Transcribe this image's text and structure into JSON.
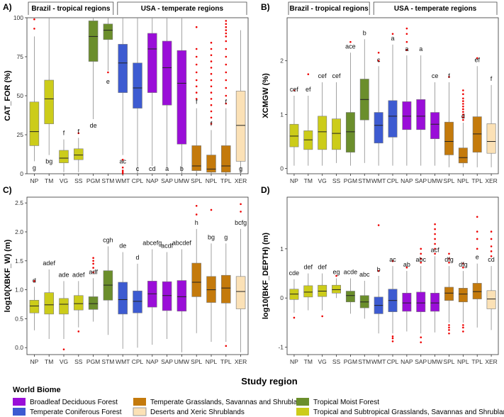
{
  "figure": {
    "xlabel": "Study region",
    "legend_title": "World Biome",
    "legend": [
      {
        "key": "BDF",
        "label": "Broadleaf Deciduous Forest"
      },
      {
        "key": "TCF",
        "label": "Temperate Coniferous Forest"
      },
      {
        "key": "TGS",
        "label": "Temperate Grasslands, Savannas and Shrublands"
      },
      {
        "key": "DXS",
        "label": "Deserts and Xeric Shrublands"
      },
      {
        "key": "TMF",
        "label": "Tropical Moist Forest"
      },
      {
        "key": "TSG",
        "label": "Tropical and Subtropical Grasslands, Savannas and Shrublands"
      }
    ],
    "colors": {
      "TSG": "#cccc1a",
      "TMF": "#6b8e2c",
      "TCF": "#3d5bd1",
      "BDF": "#9a0ed8",
      "TGS": "#c47a0c",
      "DXS": "#fbe1b6",
      "outlier": "#ee0000"
    }
  },
  "chart_data": [
    {
      "panel": "A)",
      "type": "boxplot",
      "ylabel": "CAT_FOR (%)",
      "ylim": [
        0,
        100
      ],
      "yticks": [
        "0",
        "25",
        "50",
        "75",
        "100"
      ],
      "yticks_values": [
        0,
        25,
        50,
        75,
        100
      ],
      "group_labels": [
        "Brazil - tropical regions",
        "USA - temperate regions"
      ],
      "categories": [
        "NP",
        "TM",
        "VG",
        "SS",
        "PGM",
        "STM",
        "WMT",
        "CPL",
        "NAP",
        "SAP",
        "UMW",
        "SPL",
        "NPL",
        "TPL",
        "XER"
      ],
      "biomes": [
        "TSG",
        "TSG",
        "TSG",
        "TSG",
        "TMF",
        "TMF",
        "TCF",
        "TCF",
        "BDF",
        "BDF",
        "BDF",
        "TGS",
        "TGS",
        "TGS",
        "DXS"
      ],
      "letters": [
        "g",
        "bg",
        "f",
        "f",
        "de",
        "e",
        "ac",
        "c",
        "cd",
        "a",
        "b",
        "f",
        "f",
        "f",
        "g"
      ],
      "boxes": [
        {
          "min": 8,
          "q1": 18,
          "median": 27,
          "q3": 46,
          "max": 88,
          "outliers": [
            93,
            99
          ]
        },
        {
          "min": 12,
          "q1": 32,
          "median": 48,
          "q3": 60,
          "max": 100,
          "outliers": []
        },
        {
          "min": 1,
          "q1": 7,
          "median": 10,
          "q3": 15,
          "max": 22,
          "outliers": []
        },
        {
          "min": 1,
          "q1": 9,
          "median": 12,
          "q3": 16,
          "max": 23,
          "outliers": [
            26
          ]
        },
        {
          "min": 35,
          "q1": 72,
          "median": 88,
          "q3": 98,
          "max": 100,
          "outliers": []
        },
        {
          "min": 66,
          "q1": 86,
          "median": 92,
          "q3": 96,
          "max": 100,
          "outliers": [
            65
          ]
        },
        {
          "min": 12,
          "q1": 52,
          "median": 71,
          "q3": 83,
          "max": 100,
          "outliers": [
            9,
            4,
            2,
            1,
            0
          ]
        },
        {
          "min": 0,
          "q1": 42,
          "median": 55,
          "q3": 71,
          "max": 100,
          "outliers": []
        },
        {
          "min": 5,
          "q1": 52,
          "median": 80,
          "q3": 90,
          "max": 100,
          "outliers": []
        },
        {
          "min": 4,
          "q1": 44,
          "median": 68,
          "q3": 85,
          "max": 100,
          "outliers": []
        },
        {
          "min": 0,
          "q1": 19,
          "median": 58,
          "q3": 79,
          "max": 100,
          "outliers": []
        },
        {
          "min": 0,
          "q1": 2,
          "median": 5,
          "q3": 18,
          "max": 42,
          "outliers": [
            48,
            52,
            56,
            60,
            65,
            70,
            75,
            80,
            94
          ]
        },
        {
          "min": 0,
          "q1": 1,
          "median": 3,
          "q3": 12,
          "max": 28,
          "outliers": [
            32,
            36,
            40,
            44,
            48,
            52,
            56,
            60,
            64,
            68,
            72,
            76,
            80,
            84
          ]
        },
        {
          "min": 0,
          "q1": 1,
          "median": 5,
          "q3": 18,
          "max": 42,
          "outliers": [
            45,
            50,
            55,
            60,
            65,
            70,
            75,
            80,
            85,
            88,
            90,
            92,
            94,
            96,
            98
          ]
        },
        {
          "min": 0,
          "q1": 8,
          "median": 31,
          "q3": 53,
          "max": 92,
          "outliers": []
        }
      ]
    },
    {
      "panel": "B)",
      "type": "boxplot",
      "ylabel": "XCMGW (%)",
      "ylim": [
        -0.1,
        2.8
      ],
      "yticks": [
        "0",
        "1",
        "2"
      ],
      "yticks_values": [
        0,
        1,
        2
      ],
      "group_labels": [
        "Brazil - tropical regions",
        "USA - temperate regions"
      ],
      "categories": [
        "NP",
        "TM",
        "VG",
        "SS",
        "PGM",
        "STM",
        "WMT",
        "CPL",
        "NAP",
        "SAP",
        "UMW",
        "SPL",
        "NPL",
        "TPL",
        "XER"
      ],
      "biomes": [
        "TSG",
        "TSG",
        "TSG",
        "TSG",
        "TMF",
        "TMF",
        "TCF",
        "TCF",
        "BDF",
        "BDF",
        "BDF",
        "TGS",
        "TGS",
        "TGS",
        "DXS"
      ],
      "letters": [
        "cef",
        "ef",
        "cef",
        "cef",
        "ace",
        "b",
        "c",
        "a",
        "a",
        "a",
        "ce",
        "f",
        "d",
        "ef",
        "f"
      ],
      "boxes": [
        {
          "min": 0.05,
          "q1": 0.4,
          "median": 0.6,
          "q3": 0.82,
          "max": 1.35,
          "outliers": [
            1.45
          ]
        },
        {
          "min": 0.05,
          "q1": 0.35,
          "median": 0.53,
          "q3": 0.7,
          "max": 1.35,
          "outliers": [
            1.75
          ]
        },
        {
          "min": 0.05,
          "q1": 0.35,
          "median": 0.68,
          "q3": 0.97,
          "max": 1.6,
          "outliers": []
        },
        {
          "min": 0.1,
          "q1": 0.35,
          "median": 0.65,
          "q3": 0.92,
          "max": 1.6,
          "outliers": []
        },
        {
          "min": 0.05,
          "q1": 0.3,
          "median": 0.68,
          "q3": 1.04,
          "max": 2.15,
          "outliers": [
            2.35
          ]
        },
        {
          "min": 0.1,
          "q1": 0.9,
          "median": 1.28,
          "q3": 1.66,
          "max": 2.4,
          "outliers": []
        },
        {
          "min": 0.05,
          "q1": 0.47,
          "median": 0.8,
          "q3": 1.04,
          "max": 1.9,
          "outliers": [
            2.0,
            2.15
          ]
        },
        {
          "min": 0.05,
          "q1": 0.58,
          "median": 0.97,
          "q3": 1.26,
          "max": 2.3,
          "outliers": [
            2.5
          ]
        },
        {
          "min": 0.05,
          "q1": 0.72,
          "median": 0.97,
          "q3": 1.24,
          "max": 2.1,
          "outliers": [
            2.2,
            2.35,
            2.5,
            2.6
          ]
        },
        {
          "min": 0.05,
          "q1": 0.72,
          "median": 0.97,
          "q3": 1.28,
          "max": 2.1,
          "outliers": []
        },
        {
          "min": 0.05,
          "q1": 0.55,
          "median": 0.82,
          "q3": 1.04,
          "max": 1.6,
          "outliers": []
        },
        {
          "min": 0.02,
          "q1": 0.25,
          "median": 0.5,
          "q3": 0.86,
          "max": 1.6,
          "outliers": [
            1.7
          ]
        },
        {
          "min": 0.02,
          "q1": 0.1,
          "median": 0.2,
          "q3": 0.38,
          "max": 0.85,
          "outliers": [
            0.9,
            0.95,
            1.0,
            1.05,
            1.1,
            1.15,
            1.2,
            1.25,
            1.3,
            1.38,
            1.45
          ]
        },
        {
          "min": 0.02,
          "q1": 0.3,
          "median": 0.64,
          "q3": 0.96,
          "max": 1.9,
          "outliers": [
            2.05
          ]
        },
        {
          "min": 0.02,
          "q1": 0.28,
          "median": 0.5,
          "q3": 0.83,
          "max": 1.55,
          "outliers": []
        }
      ]
    },
    {
      "panel": "C)",
      "type": "boxplot",
      "ylabel": "log10(XBKF_W) (m)",
      "ylim": [
        -0.12,
        2.6
      ],
      "yticks": [
        "0.0",
        "0.5",
        "1.0",
        "1.5",
        "2.0",
        "2.5"
      ],
      "yticks_values": [
        0,
        0.5,
        1.0,
        1.5,
        2.0,
        2.5
      ],
      "categories": [
        "NP",
        "TM",
        "VG",
        "SS",
        "PGM",
        "STM",
        "WMT",
        "CPL",
        "NAP",
        "SAP",
        "UMW",
        "SPL",
        "NPL",
        "TPL",
        "XER"
      ],
      "biomes": [
        "TSG",
        "TSG",
        "TSG",
        "TSG",
        "TMF",
        "TMF",
        "TCF",
        "TCF",
        "BDF",
        "BDF",
        "BDF",
        "TGS",
        "TGS",
        "TGS",
        "DXS"
      ],
      "letters": [
        "d",
        "adef",
        "ade",
        "adef",
        "adf",
        "cgh",
        "de",
        "d",
        "abcefg",
        "acdf",
        "abcdef",
        "h",
        "bg",
        "g",
        "bcfg"
      ],
      "boxes": [
        {
          "min": 0.3,
          "q1": 0.6,
          "median": 0.72,
          "q3": 0.82,
          "max": 1.05,
          "outliers": [
            1.15
          ]
        },
        {
          "min": 0.15,
          "q1": 0.58,
          "median": 0.74,
          "q3": 0.95,
          "max": 1.35,
          "outliers": []
        },
        {
          "min": 0.15,
          "q1": 0.58,
          "median": 0.75,
          "q3": 0.85,
          "max": 1.15,
          "outliers": [
            -0.03
          ]
        },
        {
          "min": 0.35,
          "q1": 0.65,
          "median": 0.76,
          "q3": 0.9,
          "max": 1.15,
          "outliers": [
            0.28
          ]
        },
        {
          "min": 0.45,
          "q1": 0.66,
          "median": 0.76,
          "q3": 0.88,
          "max": 1.2,
          "outliers": [
            1.3,
            1.38,
            1.45,
            1.5,
            1.55
          ]
        },
        {
          "min": 0.22,
          "q1": 0.82,
          "median": 1.08,
          "q3": 1.33,
          "max": 1.75,
          "outliers": []
        },
        {
          "min": -0.02,
          "q1": 0.58,
          "median": 0.83,
          "q3": 1.13,
          "max": 1.65,
          "outliers": []
        },
        {
          "min": 0.0,
          "q1": 0.6,
          "median": 0.8,
          "q3": 0.98,
          "max": 1.45,
          "outliers": []
        },
        {
          "min": 0.05,
          "q1": 0.7,
          "median": 0.93,
          "q3": 1.15,
          "max": 1.7,
          "outliers": []
        },
        {
          "min": 0.15,
          "q1": 0.64,
          "median": 0.9,
          "q3": 1.14,
          "max": 1.65,
          "outliers": []
        },
        {
          "min": -0.08,
          "q1": 0.63,
          "median": 0.88,
          "q3": 1.16,
          "max": 1.7,
          "outliers": []
        },
        {
          "min": 0.25,
          "q1": 0.88,
          "median": 1.13,
          "q3": 1.46,
          "max": 2.05,
          "outliers": [
            2.3,
            2.45
          ]
        },
        {
          "min": 0.1,
          "q1": 0.78,
          "median": 1.0,
          "q3": 1.23,
          "max": 1.8,
          "outliers": [
            2.38
          ]
        },
        {
          "min": 0.1,
          "q1": 0.77,
          "median": 1.03,
          "q3": 1.25,
          "max": 1.8,
          "outliers": [
            0.03
          ]
        },
        {
          "min": -0.08,
          "q1": 0.67,
          "median": 0.97,
          "q3": 1.23,
          "max": 2.05,
          "outliers": [
            2.35,
            2.48
          ]
        }
      ]
    },
    {
      "panel": "D)",
      "type": "boxplot",
      "ylabel": "log10(BKF_DEPTH) (m)",
      "ylim": [
        -1.15,
        2.05
      ],
      "yticks": [
        "-1",
        "0",
        "1"
      ],
      "yticks_values": [
        -1,
        0,
        1
      ],
      "categories": [
        "NP",
        "TM",
        "VG",
        "SS",
        "PGM",
        "STM",
        "WMT",
        "CPL",
        "NAP",
        "SAP",
        "UMW",
        "SPL",
        "NPL",
        "TPL",
        "XER"
      ],
      "biomes": [
        "TSG",
        "TSG",
        "TSG",
        "TSG",
        "TMF",
        "TMF",
        "TCF",
        "TCF",
        "BDF",
        "BDF",
        "BDF",
        "TGS",
        "TGS",
        "TGS",
        "DXS"
      ],
      "letters": [
        "cde",
        "def",
        "def",
        "eg",
        "acde",
        "abc",
        "b",
        "ac",
        "ab",
        "abc",
        "acf",
        "dfg",
        "dfg",
        "e",
        "cd"
      ],
      "boxes": [
        {
          "min": -0.3,
          "q1": -0.03,
          "median": 0.08,
          "q3": 0.18,
          "max": 0.38,
          "outliers": [
            -0.4
          ]
        },
        {
          "min": -0.25,
          "q1": 0.02,
          "median": 0.12,
          "q3": 0.25,
          "max": 0.5,
          "outliers": []
        },
        {
          "min": -0.25,
          "q1": 0.03,
          "median": 0.14,
          "q3": 0.26,
          "max": 0.5,
          "outliers": [
            -0.37
          ]
        },
        {
          "min": 0.0,
          "q1": 0.1,
          "median": 0.17,
          "q3": 0.26,
          "max": 0.4,
          "outliers": [
            0.45
          ]
        },
        {
          "min": -0.32,
          "q1": -0.08,
          "median": 0.05,
          "q3": 0.14,
          "max": 0.4,
          "outliers": []
        },
        {
          "min": -0.42,
          "q1": -0.2,
          "median": -0.08,
          "q3": 0.05,
          "max": 0.35,
          "outliers": []
        },
        {
          "min": -0.72,
          "q1": -0.32,
          "median": -0.15,
          "q3": 0.02,
          "max": 0.45,
          "outliers": [
            1.48,
            0.55
          ]
        },
        {
          "min": -0.72,
          "q1": -0.28,
          "median": -0.05,
          "q3": 0.18,
          "max": 0.65,
          "outliers": [
            -0.78,
            -0.82,
            -0.88,
            0.75
          ]
        },
        {
          "min": -0.68,
          "q1": -0.27,
          "median": -0.1,
          "q3": 0.1,
          "max": 0.55,
          "outliers": [
            0.62
          ]
        },
        {
          "min": -0.72,
          "q1": -0.28,
          "median": -0.1,
          "q3": 0.12,
          "max": 0.65,
          "outliers": [
            -0.8,
            -0.9,
            0.72,
            0.8,
            0.9,
            1.0
          ]
        },
        {
          "min": -0.7,
          "q1": -0.27,
          "median": -0.1,
          "q3": 0.1,
          "max": 0.85,
          "outliers": [
            0.9,
            1.0,
            1.1,
            1.2,
            1.3,
            1.4,
            1.5
          ]
        },
        {
          "min": -0.5,
          "q1": -0.05,
          "median": 0.1,
          "q3": 0.22,
          "max": 0.65,
          "outliers": [
            -0.55,
            -0.6,
            -0.65,
            -0.72,
            0.72,
            0.8,
            0.9
          ]
        },
        {
          "min": -0.5,
          "q1": -0.08,
          "median": 0.08,
          "q3": 0.2,
          "max": 0.55,
          "outliers": [
            -0.55,
            -0.6,
            -0.68,
            0.62,
            0.7
          ]
        },
        {
          "min": -0.6,
          "q1": -0.02,
          "median": 0.13,
          "q3": 0.3,
          "max": 0.7,
          "outliers": [
            1.0,
            1.2,
            1.35,
            1.65
          ]
        },
        {
          "min": -0.65,
          "q1": -0.22,
          "median": -0.02,
          "q3": 0.15,
          "max": 0.65,
          "outliers": [
            0.85,
            0.95,
            1.05,
            1.2,
            1.35
          ]
        }
      ]
    }
  ]
}
